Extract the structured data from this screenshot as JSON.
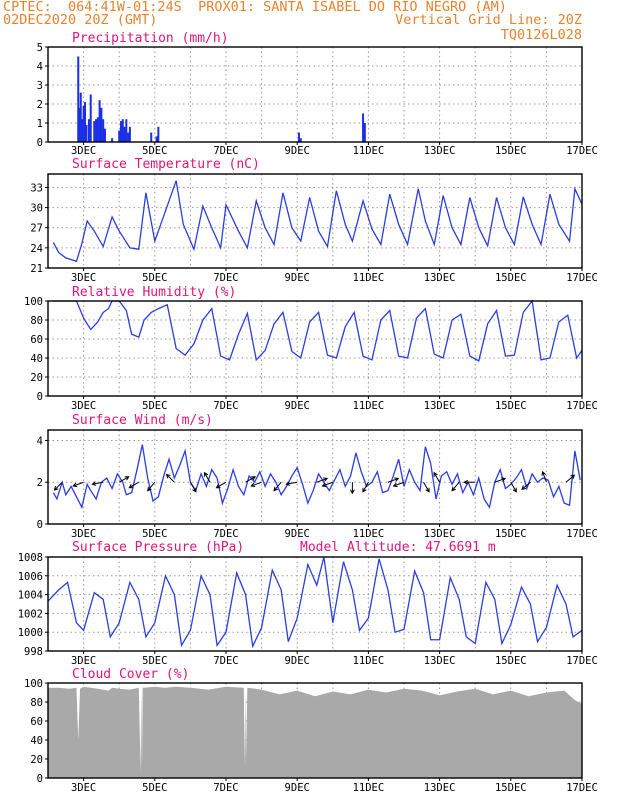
{
  "header": {
    "line1": "CPTEC:  064:41W-01:24S  PROX01: SANTA ISABEL DO RIO NEGRO (AM)",
    "line2_left": "02DEC2020 20Z (GMT)",
    "line2_right": "Vertical Grid Line: 20Z",
    "line3_right": "TQ0126L028"
  },
  "colors": {
    "header": "#e8822e",
    "title": "#e0147a",
    "series": "#2a3ee0",
    "bars": "#1a2fe6",
    "cloud": "#a9a9a9",
    "grid": "#9a9a9a"
  },
  "chart_data": [
    {
      "type": "bar",
      "title": "Precipitation (mm/h)",
      "x_labels": [
        "3DEC",
        "5DEC",
        "7DEC",
        "9DEC",
        "11DEC",
        "13DEC",
        "15DEC",
        "17DEC"
      ],
      "ylim": [
        0,
        5
      ],
      "y_ticks": [
        0,
        1,
        2,
        3,
        4,
        5
      ],
      "grid": true,
      "x_days": [
        2.85,
        2.88,
        2.92,
        2.96,
        3.0,
        3.04,
        3.08,
        3.15,
        3.2,
        3.3,
        3.35,
        3.4,
        3.45,
        3.5,
        3.55,
        3.6,
        3.8,
        4.0,
        4.05,
        4.1,
        4.15,
        4.2,
        4.25,
        4.3,
        4.9,
        5.05,
        5.1,
        9.05,
        9.1,
        10.85,
        10.9
      ],
      "values": [
        4.5,
        1.8,
        2.6,
        1.2,
        1.9,
        2.1,
        0.9,
        1.2,
        2.5,
        1.1,
        1.2,
        1.3,
        2.2,
        1.8,
        1.2,
        0.7,
        0.2,
        0.6,
        1.1,
        1.2,
        0.8,
        1.2,
        0.5,
        0.8,
        0.5,
        0.3,
        0.8,
        0.5,
        0.2,
        1.5,
        1.0
      ]
    },
    {
      "type": "line",
      "title": "Surface Temperature (nC)",
      "x_labels": [
        "3DEC",
        "5DEC",
        "7DEC",
        "9DEC",
        "11DEC",
        "13DEC",
        "15DEC",
        "17DEC"
      ],
      "ylim": [
        21,
        35
      ],
      "y_ticks": [
        21,
        24,
        27,
        30,
        33
      ],
      "grid": true,
      "x_days": [
        2.15,
        2.3,
        2.5,
        2.8,
        2.95,
        3.1,
        3.3,
        3.55,
        3.8,
        4.0,
        4.3,
        4.55,
        4.75,
        5.0,
        5.3,
        5.6,
        5.8,
        6.1,
        6.35,
        6.6,
        6.85,
        7.0,
        7.35,
        7.6,
        7.85,
        8.1,
        8.35,
        8.6,
        8.85,
        9.1,
        9.35,
        9.6,
        9.85,
        10.1,
        10.35,
        10.55,
        10.85,
        11.1,
        11.35,
        11.6,
        11.85,
        12.1,
        12.4,
        12.6,
        12.85,
        13.1,
        13.35,
        13.6,
        13.85,
        14.1,
        14.35,
        14.6,
        14.85,
        15.1,
        15.35,
        15.6,
        15.85,
        16.1,
        16.35,
        16.65,
        16.8,
        17.0
      ],
      "values": [
        24.8,
        23.3,
        22.5,
        22.0,
        24.6,
        28.0,
        26.5,
        24.2,
        28.6,
        26.5,
        24.0,
        23.8,
        32.2,
        25.0,
        29.5,
        34.0,
        27.5,
        23.8,
        30.2,
        27.0,
        24.0,
        30.4,
        26.5,
        24.0,
        31.0,
        27.0,
        24.5,
        32.2,
        27.0,
        25.0,
        31.5,
        26.5,
        24.2,
        32.5,
        27.5,
        25.0,
        31.0,
        26.8,
        24.5,
        32.0,
        27.5,
        24.5,
        32.8,
        28.0,
        24.5,
        31.8,
        27.0,
        24.5,
        31.5,
        27.0,
        24.3,
        31.5,
        27.0,
        24.5,
        31.6,
        27.5,
        24.5,
        32.0,
        27.5,
        25.0,
        32.8,
        30.5
      ]
    },
    {
      "type": "line",
      "title": "Relative Humidity (%)",
      "x_labels": [
        "3DEC",
        "5DEC",
        "7DEC",
        "9DEC",
        "11DEC",
        "13DEC",
        "15DEC",
        "17DEC"
      ],
      "ylim": [
        0,
        100
      ],
      "y_ticks": [
        0,
        20,
        40,
        60,
        80,
        100
      ],
      "grid": true,
      "x_days": [
        2.15,
        2.4,
        2.6,
        2.8,
        3.0,
        3.2,
        3.4,
        3.55,
        3.7,
        3.8,
        4.0,
        4.2,
        4.35,
        4.55,
        4.7,
        4.9,
        5.1,
        5.35,
        5.6,
        5.85,
        6.1,
        6.35,
        6.6,
        6.85,
        7.1,
        7.35,
        7.6,
        7.85,
        8.1,
        8.35,
        8.6,
        8.85,
        9.1,
        9.35,
        9.6,
        9.85,
        10.1,
        10.35,
        10.6,
        10.85,
        11.1,
        11.35,
        11.6,
        11.85,
        12.1,
        12.35,
        12.6,
        12.85,
        13.1,
        13.35,
        13.6,
        13.85,
        14.1,
        14.35,
        14.6,
        14.85,
        15.1,
        15.35,
        15.6,
        15.85,
        16.1,
        16.35,
        16.6,
        16.85,
        17.0
      ],
      "values": [
        100,
        100,
        100,
        100,
        82,
        70,
        78,
        88,
        92,
        100,
        100,
        90,
        65,
        62,
        80,
        88,
        92,
        96,
        50,
        43,
        55,
        80,
        92,
        42,
        38,
        65,
        87,
        38,
        48,
        76,
        88,
        47,
        40,
        78,
        88,
        43,
        40,
        73,
        88,
        42,
        38,
        80,
        90,
        42,
        40,
        82,
        92,
        44,
        40,
        80,
        86,
        42,
        37,
        76,
        90,
        42,
        43,
        88,
        100,
        38,
        40,
        78,
        85,
        40,
        48
      ]
    },
    {
      "type": "line",
      "title": "Surface Wind (m/s)",
      "x_labels": [
        "3DEC",
        "5DEC",
        "7DEC",
        "9DEC",
        "11DEC",
        "13DEC",
        "15DEC",
        "17DEC"
      ],
      "ylim": [
        0,
        4.5
      ],
      "y_ticks": [
        0,
        2,
        4
      ],
      "grid": true,
      "x_days": [
        2.15,
        2.25,
        2.4,
        2.5,
        2.65,
        2.8,
        2.95,
        3.1,
        3.2,
        3.35,
        3.5,
        3.65,
        3.8,
        3.95,
        4.1,
        4.2,
        4.35,
        4.5,
        4.65,
        4.8,
        4.95,
        5.1,
        5.25,
        5.4,
        5.55,
        5.7,
        5.85,
        6.0,
        6.15,
        6.3,
        6.45,
        6.6,
        6.75,
        6.9,
        7.05,
        7.2,
        7.35,
        7.5,
        7.65,
        7.8,
        7.95,
        8.1,
        8.25,
        8.4,
        8.55,
        8.7,
        8.85,
        9.0,
        9.15,
        9.3,
        9.45,
        9.6,
        9.75,
        9.9,
        10.05,
        10.2,
        10.35,
        10.5,
        10.65,
        10.8,
        10.95,
        11.1,
        11.25,
        11.4,
        11.55,
        11.7,
        11.85,
        12.0,
        12.15,
        12.3,
        12.45,
        12.6,
        12.75,
        12.9,
        13.05,
        13.2,
        13.35,
        13.5,
        13.65,
        13.8,
        13.95,
        14.1,
        14.25,
        14.4,
        14.55,
        14.7,
        14.85,
        15.0,
        15.15,
        15.3,
        15.45,
        15.6,
        15.75,
        15.9,
        16.05,
        16.2,
        16.35,
        16.5,
        16.65,
        16.8,
        16.95
      ],
      "values": [
        1.5,
        1.2,
        2.0,
        1.4,
        1.8,
        1.3,
        0.8,
        1.9,
        1.6,
        1.2,
        2.0,
        2.2,
        1.7,
        2.4,
        2.0,
        1.4,
        1.5,
        2.6,
        3.8,
        2.2,
        1.1,
        1.3,
        2.3,
        3.1,
        2.2,
        2.8,
        3.5,
        2.0,
        1.6,
        2.4,
        1.8,
        2.6,
        2.2,
        1.0,
        1.7,
        2.6,
        1.8,
        1.4,
        2.3,
        2.0,
        2.5,
        1.8,
        2.4,
        2.0,
        1.4,
        1.8,
        2.3,
        2.7,
        1.9,
        1.0,
        1.6,
        2.4,
        2.0,
        1.6,
        2.1,
        2.6,
        1.8,
        2.3,
        3.4,
        2.5,
        1.8,
        2.0,
        2.5,
        1.5,
        1.6,
        2.3,
        3.1,
        1.8,
        2.6,
        2.0,
        1.6,
        3.7,
        2.9,
        1.2,
        2.3,
        2.5,
        1.9,
        2.4,
        1.5,
        2.0,
        1.4,
        2.2,
        1.2,
        0.8,
        2.0,
        2.6,
        1.7,
        1.9,
        2.2,
        2.6,
        1.7,
        2.4,
        2.0,
        2.2,
        2.1,
        1.3,
        1.8,
        1.0,
        0.9,
        3.5,
        2.1
      ],
      "vector_days": [
        2.4,
        3.0,
        3.55,
        4.0,
        4.55,
        5.0,
        5.55,
        6.0,
        6.55,
        7.0,
        7.55,
        8.0,
        8.55,
        9.0,
        9.55,
        10.0,
        10.55,
        11.0,
        11.55,
        12.0,
        12.55,
        13.0,
        13.55,
        14.0,
        14.55,
        15.0,
        15.55,
        16.0,
        16.55
      ],
      "vector_dirs_deg": [
        225,
        200,
        190,
        30,
        210,
        230,
        135,
        300,
        120,
        210,
        30,
        200,
        230,
        190,
        20,
        200,
        270,
        240,
        20,
        200,
        300,
        120,
        230,
        180,
        20,
        300,
        220,
        110,
        40
      ]
    },
    {
      "type": "line",
      "title": "Surface Pressure (hPa)",
      "annotation": "Model Altitude: 47.6691 m",
      "x_labels": [
        "3DEC",
        "5DEC",
        "7DEC",
        "9DEC",
        "11DEC",
        "13DEC",
        "15DEC",
        "17DEC"
      ],
      "ylim": [
        998,
        1008
      ],
      "y_ticks": [
        998,
        1000,
        1002,
        1004,
        1006,
        1008
      ],
      "grid": true,
      "x_days": [
        2.0,
        2.3,
        2.55,
        2.8,
        3.0,
        3.3,
        3.55,
        3.75,
        4.0,
        4.3,
        4.55,
        4.75,
        5.0,
        5.3,
        5.55,
        5.75,
        6.0,
        6.3,
        6.55,
        6.75,
        7.0,
        7.3,
        7.55,
        7.75,
        8.0,
        8.3,
        8.55,
        8.75,
        9.0,
        9.3,
        9.55,
        9.75,
        10.0,
        10.3,
        10.55,
        10.75,
        11.0,
        11.3,
        11.55,
        11.75,
        12.0,
        12.3,
        12.55,
        12.75,
        13.0,
        13.3,
        13.55,
        13.75,
        14.0,
        14.3,
        14.55,
        14.75,
        15.0,
        15.3,
        15.55,
        15.75,
        16.0,
        16.3,
        16.55,
        16.75,
        17.0
      ],
      "values": [
        1003.3,
        1004.5,
        1005.3,
        1001.0,
        1000.2,
        1004.2,
        1003.5,
        999.5,
        1001.0,
        1005.3,
        1003.5,
        999.5,
        1001.0,
        1006.0,
        1004.0,
        998.6,
        1000.2,
        1006.0,
        1004.0,
        998.6,
        1000.0,
        1006.3,
        1004.0,
        998.5,
        1000.5,
        1006.6,
        1004.5,
        999.0,
        1001.5,
        1007.2,
        1005.0,
        1008.0,
        1001.0,
        1007.5,
        1004.5,
        1000.2,
        1001.5,
        1007.8,
        1004.5,
        1000.0,
        1000.3,
        1006.5,
        1004.2,
        999.2,
        999.2,
        1005.8,
        1003.5,
        999.5,
        998.8,
        1005.3,
        1003.5,
        998.8,
        1000.8,
        1004.8,
        1003.0,
        999.0,
        1000.5,
        1005.0,
        1003.0,
        999.5,
        1000.2
      ]
    },
    {
      "type": "area",
      "title": "Cloud Cover (%)",
      "x_labels": [
        "3DEC",
        "5DEC",
        "7DEC",
        "9DEC",
        "11DEC",
        "13DEC",
        "15DEC",
        "17DEC"
      ],
      "ylim": [
        0,
        100
      ],
      "y_ticks": [
        0,
        20,
        40,
        60,
        80,
        100
      ],
      "grid": true,
      "x_days": [
        2.0,
        2.3,
        2.6,
        2.8,
        2.85,
        2.9,
        3.0,
        3.4,
        3.7,
        3.8,
        4.0,
        4.3,
        4.55,
        4.6,
        4.62,
        4.64,
        4.66,
        4.7,
        5.0,
        5.3,
        5.6,
        6.0,
        6.5,
        7.0,
        7.5,
        7.52,
        7.54,
        7.56,
        7.6,
        8.0,
        8.5,
        9.0,
        9.5,
        10.0,
        10.5,
        11.0,
        11.5,
        12.0,
        12.5,
        13.0,
        13.5,
        14.0,
        14.5,
        15.0,
        15.5,
        16.0,
        16.5,
        16.8,
        17.0
      ],
      "values": [
        95,
        95,
        94,
        95,
        40,
        94,
        96,
        94,
        92,
        95,
        94,
        93,
        95,
        5,
        96,
        10,
        95,
        95,
        96,
        95,
        96,
        95,
        93,
        96,
        95,
        10,
        96,
        15,
        95,
        93,
        88,
        92,
        86,
        91,
        88,
        93,
        90,
        94,
        92,
        87,
        91,
        94,
        88,
        92,
        86,
        90,
        92,
        82,
        78
      ]
    }
  ]
}
